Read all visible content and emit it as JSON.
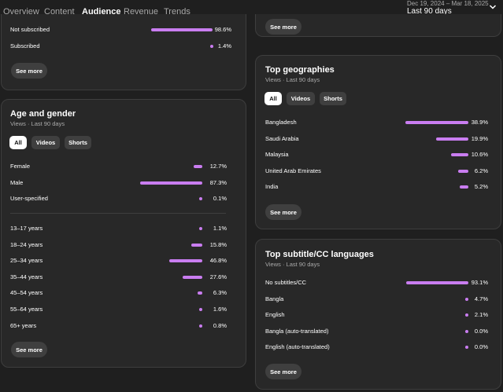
{
  "nav": {
    "tabs": [
      "Overview",
      "Content",
      "Audience",
      "Revenue",
      "Trends"
    ],
    "date_range": "Dec 19, 2024 – Mar 18, 2025",
    "period": "Last 90 days"
  },
  "subscription": {
    "rows": [
      {
        "label": "Not subscribed",
        "value": "98.6%",
        "pct": 98.6
      },
      {
        "label": "Subscribed",
        "value": "1.4%",
        "pct": 1.4
      }
    ],
    "see_more": "See more"
  },
  "age_gender": {
    "title": "Age and gender",
    "subtitle": "Views · Last 90 days",
    "chips": [
      "All",
      "Videos",
      "Shorts"
    ],
    "gender": [
      {
        "label": "Female",
        "value": "12.7%",
        "pct": 12.7
      },
      {
        "label": "Male",
        "value": "87.3%",
        "pct": 87.3
      },
      {
        "label": "User-specified",
        "value": "0.1%",
        "pct": 0.1
      }
    ],
    "ages": [
      {
        "label": "13–17 years",
        "value": "1.1%",
        "pct": 1.1
      },
      {
        "label": "18–24 years",
        "value": "15.8%",
        "pct": 15.8
      },
      {
        "label": "25–34 years",
        "value": "46.8%",
        "pct": 46.8
      },
      {
        "label": "35–44 years",
        "value": "27.6%",
        "pct": 27.6
      },
      {
        "label": "45–54 years",
        "value": "6.3%",
        "pct": 6.3
      },
      {
        "label": "55–64 years",
        "value": "1.6%",
        "pct": 1.6
      },
      {
        "label": "65+ years",
        "value": "0.8%",
        "pct": 0.8
      }
    ],
    "see_more": "See more"
  },
  "top_card": {
    "see_more": "See more"
  },
  "geographies": {
    "title": "Top geographies",
    "subtitle": "Views · Last 90 days",
    "chips": [
      "All",
      "Videos",
      "Shorts"
    ],
    "rows": [
      {
        "label": "Bangladesh",
        "value": "38.9%",
        "pct": 38.9
      },
      {
        "label": "Saudi Arabia",
        "value": "19.9%",
        "pct": 19.9
      },
      {
        "label": "Malaysia",
        "value": "10.6%",
        "pct": 10.6
      },
      {
        "label": "United Arab Emirates",
        "value": "6.2%",
        "pct": 6.2
      },
      {
        "label": "India",
        "value": "5.2%",
        "pct": 5.2
      }
    ],
    "see_more": "See more"
  },
  "subtitles": {
    "title": "Top subtitle/CC languages",
    "subtitle": "Views · Last 90 days",
    "rows": [
      {
        "label": "No subtitles/CC",
        "value": "93.1%",
        "pct": 93.1
      },
      {
        "label": "Bangla",
        "value": "4.7%",
        "pct": 4.7
      },
      {
        "label": "English",
        "value": "2.1%",
        "pct": 2.1
      },
      {
        "label": "Bangla (auto-translated)",
        "value": "0.0%",
        "pct": 0.0
      },
      {
        "label": "English (auto-translated)",
        "value": "0.0%",
        "pct": 0.0
      }
    ],
    "see_more": "See more"
  },
  "colors": {
    "accent_bar": "#c97df0",
    "card_bg": "#282828",
    "page_bg": "#1f1f1f"
  }
}
